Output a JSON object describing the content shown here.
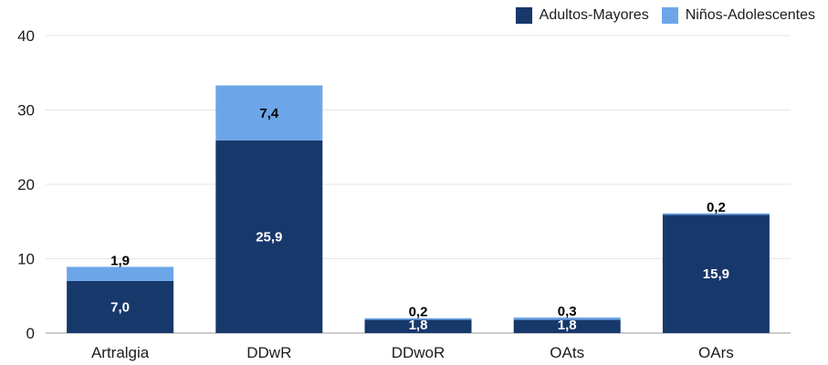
{
  "chart_data": {
    "type": "bar",
    "stacked": true,
    "categories": [
      "Artralgia",
      "DDwR",
      "DDwoR",
      "OAts",
      "OArs"
    ],
    "series": [
      {
        "name": "Adultos-Mayores",
        "values": [
          7.0,
          25.9,
          1.8,
          1.8,
          15.9
        ],
        "labels": [
          "7,0",
          "25,9",
          "1,8",
          "1,8",
          "15,9"
        ],
        "color": "#17386b"
      },
      {
        "name": "Niños-Adolescentes",
        "values": [
          1.9,
          7.4,
          0.2,
          0.3,
          0.2
        ],
        "labels": [
          "1,9",
          "7,4",
          "0,2",
          "0,3",
          "0,2"
        ],
        "color": "#6ca6e9"
      }
    ],
    "ylim": [
      0,
      40
    ],
    "yticks": [
      0,
      10,
      20,
      30,
      40
    ],
    "grid": true,
    "legend": "top-right",
    "title": "",
    "xlabel": "",
    "ylabel": ""
  }
}
